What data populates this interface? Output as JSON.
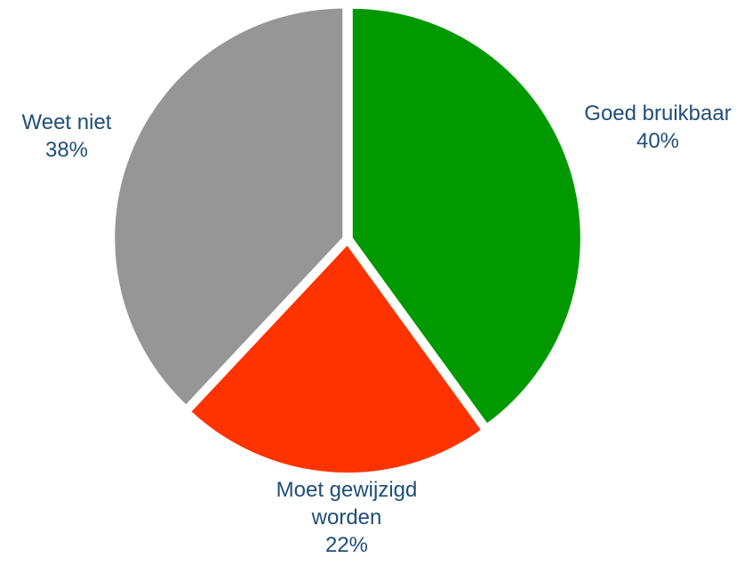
{
  "chart_data": {
    "type": "pie",
    "title": "",
    "slices": [
      {
        "label_lines": [
          "Goed bruikbaar"
        ],
        "value_label": "40%",
        "value": 40,
        "color": "#009900"
      },
      {
        "label_lines": [
          "Moet gewijzigd",
          "worden"
        ],
        "value_label": "22%",
        "value": 22,
        "color": "#ff3300"
      },
      {
        "label_lines": [
          "Weet niet"
        ],
        "value_label": "38%",
        "value": 38,
        "color": "#969696"
      }
    ],
    "label_color": "#1f4e79",
    "start_angle": "12 o'clock",
    "direction": "clockwise",
    "legend": "none"
  }
}
